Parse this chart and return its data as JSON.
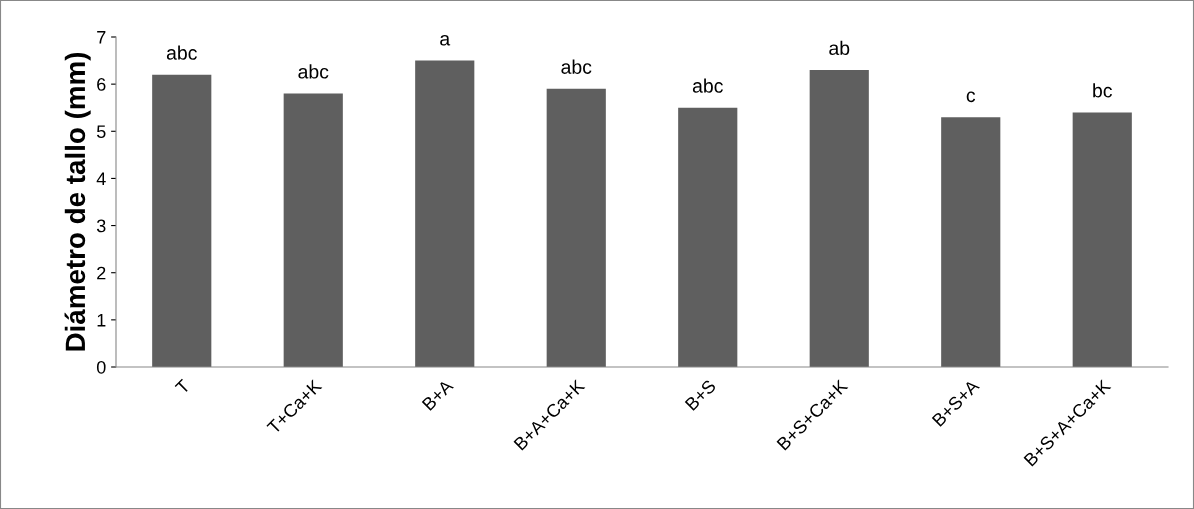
{
  "chart_data": {
    "type": "bar",
    "ylabel": "Diámetro de tallo (mm)",
    "categories": [
      "T",
      "T+Ca+K",
      "B+A",
      "B+A+Ca+K",
      "B+S",
      "B+S+Ca+K",
      "B+S+A",
      "B+S+A+Ca+K"
    ],
    "values": [
      6.2,
      5.8,
      6.5,
      5.9,
      5.5,
      6.3,
      5.3,
      5.4
    ],
    "color": "#5f5f5f",
    "ylim": [
      0,
      7
    ],
    "yticks": [
      0,
      1,
      2,
      3,
      4,
      5,
      6,
      7
    ],
    "grid": false,
    "legend": false,
    "annotations": [
      {
        "text": "abc",
        "x": "T",
        "y": 6.2
      },
      {
        "text": "abc",
        "x": "T+Ca+K",
        "y": 5.8
      },
      {
        "text": "a",
        "x": "B+A",
        "y": 6.5
      },
      {
        "text": "abc",
        "x": "B+A+Ca+K",
        "y": 5.9
      },
      {
        "text": "abc",
        "x": "B+S",
        "y": 5.5
      },
      {
        "text": "ab",
        "x": "B+S+Ca+K",
        "y": 6.3
      },
      {
        "text": "c",
        "x": "B+S+A",
        "y": 5.3
      },
      {
        "text": "bc",
        "x": "B+S+A+Ca+K",
        "y": 5.4
      }
    ]
  }
}
